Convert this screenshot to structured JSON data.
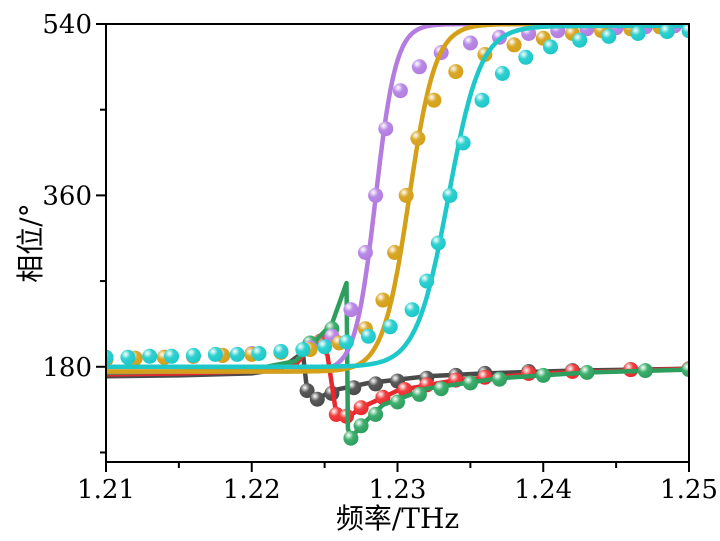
{
  "chart_data": {
    "type": "line",
    "title": "",
    "xlabel": "频率/THz",
    "ylabel": "相位/°",
    "xlim": [
      1.21,
      1.25
    ],
    "ylim": [
      80,
      540
    ],
    "x_ticks": [
      1.21,
      1.22,
      1.23,
      1.24,
      1.25
    ],
    "x_tick_labels": [
      "1.21",
      "1.22",
      "1.23",
      "1.24",
      "1.25"
    ],
    "y_ticks": [
      180,
      360,
      540
    ],
    "y_tick_labels": [
      "180",
      "360",
      "540"
    ],
    "grid": false,
    "legend": "none",
    "series": [
      {
        "color": "#4a4a4a",
        "marker_color": "#5a5a5a",
        "kind": "resonance",
        "line_x": [
          1.21,
          1.215,
          1.22,
          1.222,
          1.2235,
          1.2238,
          1.2245,
          1.2255,
          1.228,
          1.232,
          1.236,
          1.242,
          1.25
        ],
        "line_y": [
          170,
          171,
          173,
          178,
          195,
          155,
          146,
          155,
          163,
          170,
          173,
          176,
          178
        ],
        "marker_x": [
          1.2238,
          1.2245,
          1.2255,
          1.227,
          1.2285,
          1.23,
          1.232,
          1.234,
          1.236,
          1.239,
          1.242,
          1.246,
          1.25
        ],
        "marker_y": [
          155,
          146,
          152,
          158,
          162,
          165,
          168,
          171,
          173,
          175,
          176,
          177,
          178
        ]
      },
      {
        "color": "#e8282d",
        "marker_color": "#f04040",
        "kind": "resonance",
        "line_x": [
          1.21,
          1.215,
          1.22,
          1.223,
          1.2245,
          1.2252,
          1.2258,
          1.2265,
          1.2275,
          1.23,
          1.234,
          1.24,
          1.25
        ],
        "line_y": [
          172,
          173,
          175,
          182,
          210,
          192,
          130,
          126,
          137,
          155,
          166,
          173,
          178
        ],
        "marker_x": [
          1.2247,
          1.2258,
          1.2265,
          1.2275,
          1.229,
          1.2305,
          1.232,
          1.234,
          1.236,
          1.239,
          1.242,
          1.246,
          1.25
        ],
        "marker_y": [
          207,
          130,
          128,
          137,
          148,
          156,
          161,
          166,
          169,
          173,
          175,
          177,
          178
        ]
      },
      {
        "color": "#2e9e5e",
        "marker_color": "#3daf6e",
        "kind": "resonance",
        "line_x": [
          1.21,
          1.215,
          1.22,
          1.223,
          1.2255,
          1.2265,
          1.2266,
          1.2268,
          1.2275,
          1.229,
          1.232,
          1.237,
          1.243,
          1.25
        ],
        "line_y": [
          174,
          175,
          177,
          186,
          225,
          268,
          115,
          105,
          118,
          140,
          157,
          168,
          174,
          177
        ],
        "marker_x": [
          1.224,
          1.2255,
          1.2268,
          1.2275,
          1.2285,
          1.23,
          1.2315,
          1.233,
          1.235,
          1.237,
          1.24,
          1.243,
          1.247,
          1.25
        ],
        "marker_y": [
          205,
          220,
          105,
          118,
          130,
          143,
          151,
          157,
          163,
          167,
          171,
          174,
          176,
          177
        ]
      },
      {
        "color": "#b57ce0",
        "marker_color": "#b88ae6",
        "kind": "sigmoid",
        "center": 1.2285,
        "width": 0.0007,
        "low": 175,
        "high": 540,
        "marker_x": [
          1.21,
          1.212,
          1.214,
          1.216,
          1.218,
          1.22,
          1.222,
          1.224,
          1.2255,
          1.2268,
          1.2278,
          1.2285,
          1.2292,
          1.2302,
          1.2315,
          1.233,
          1.235,
          1.237,
          1.239,
          1.241,
          1.243,
          1.245,
          1.247,
          1.249,
          1.25
        ],
        "marker_y": [
          188,
          189,
          190,
          191,
          192,
          194,
          196,
          200,
          212,
          240,
          300,
          360,
          430,
          470,
          495,
          510,
          520,
          526,
          530,
          533,
          535,
          536,
          537,
          538,
          539
        ]
      },
      {
        "color": "#d4a017",
        "marker_color": "#d9a82a",
        "kind": "sigmoid",
        "center": 1.2308,
        "width": 0.0009,
        "low": 175,
        "high": 540,
        "marker_x": [
          1.21,
          1.212,
          1.214,
          1.216,
          1.218,
          1.22,
          1.222,
          1.224,
          1.226,
          1.2278,
          1.229,
          1.2298,
          1.2306,
          1.2314,
          1.2325,
          1.234,
          1.236,
          1.238,
          1.24,
          1.242,
          1.244,
          1.246,
          1.248,
          1.25
        ],
        "marker_y": [
          188,
          189,
          190,
          191,
          192,
          193,
          195,
          198,
          205,
          220,
          250,
          300,
          360,
          420,
          460,
          490,
          508,
          518,
          525,
          530,
          533,
          535,
          537,
          538
        ]
      },
      {
        "color": "#1ec8c8",
        "marker_color": "#2fd0d0",
        "kind": "sigmoid",
        "center": 1.2335,
        "width": 0.0011,
        "low": 180,
        "high": 538,
        "marker_x": [
          1.21,
          1.2115,
          1.213,
          1.2145,
          1.216,
          1.2175,
          1.219,
          1.2205,
          1.222,
          1.2235,
          1.225,
          1.2265,
          1.228,
          1.2295,
          1.231,
          1.232,
          1.2328,
          1.2336,
          1.2345,
          1.2358,
          1.2372,
          1.2388,
          1.2405,
          1.2425,
          1.2445,
          1.2465,
          1.2485,
          1.25
        ],
        "marker_y": [
          190,
          190,
          191,
          191,
          192,
          193,
          193,
          194,
          196,
          198,
          201,
          206,
          212,
          222,
          240,
          270,
          310,
          360,
          415,
          460,
          488,
          505,
          516,
          523,
          527,
          530,
          532,
          533
        ]
      }
    ]
  }
}
